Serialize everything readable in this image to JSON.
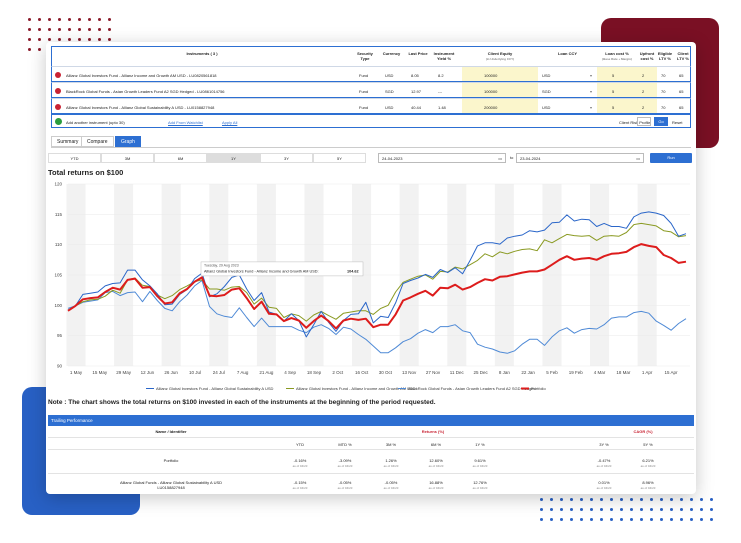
{
  "table": {
    "headers": [
      "Instruments ( 3 )",
      "Security Type",
      "Currency",
      "Last Price",
      "Instrument Yield %",
      "Client Equity",
      "Loan CCY",
      "Loan cost %",
      "Upfront cost %",
      "Eligible LTV %",
      "Client LTV %"
    ],
    "header_subs": [
      "",
      "",
      "",
      "",
      "",
      "(in Underlying CCY)",
      "",
      "(Base Rate + Margin)",
      "",
      "",
      ""
    ],
    "rows": [
      {
        "name": "Allianz Global Investors Fund - Allianz Income and Growth AM USD - LU0820561818",
        "type": "Fund",
        "currency": "USD",
        "price": "8.05",
        "yield": "8.2",
        "equity": "100000",
        "loan_ccy": "USD",
        "loan_cost": "5",
        "upfront": "2",
        "eligible": "70",
        "client": "65"
      },
      {
        "name": "BlackRock Global Funds - Asian Growth Leaders Fund A2 SGD Hedged - LU0861014756",
        "type": "Fund",
        "currency": "SGD",
        "price": "12.97",
        "yield": "---",
        "equity": "100000",
        "loan_ccy": "SGD",
        "loan_cost": "5",
        "upfront": "2",
        "eligible": "70",
        "client": "65"
      },
      {
        "name": "Allianz Global Investors Fund - Allianz Global Sustainability A USD - LU0158827948",
        "type": "Fund",
        "currency": "USD",
        "price": "40.44",
        "yield": "1.48",
        "equity": "200000",
        "loan_ccy": "USD",
        "loan_cost": "5",
        "upfront": "2",
        "eligible": "70",
        "client": "65"
      }
    ],
    "add_label": "Add another instrument (upto 30)",
    "add_watchlist": "Add From Watchlist",
    "apply_all": "Apply All",
    "risk_label": "Client Risk Profile",
    "go": "Go",
    "reset": "Reset"
  },
  "tabs": [
    "Summary",
    "Compare",
    "Graph"
  ],
  "periods": [
    "YTD",
    "3M",
    "6M",
    "1Y",
    "3Y",
    "5Y"
  ],
  "selected_period": "1Y",
  "date_from": "24-04-2023",
  "date_sep": "to",
  "date_to": "23-04-2024",
  "run": "Run",
  "chart_title": "Total returns on $100",
  "chart_data": {
    "type": "line",
    "ylim": [
      90,
      120
    ],
    "yticks": [
      90,
      95,
      100,
      105,
      110,
      115,
      120
    ],
    "x_labels": [
      "1 May",
      "15 May",
      "29 May",
      "12 Jun",
      "26 Jun",
      "10 Jul",
      "24 Jul",
      "7 Aug",
      "21 Aug",
      "4 Sep",
      "18 Sep",
      "2 Oct",
      "16 Oct",
      "30 Oct",
      "13 Nov",
      "27 Nov",
      "11 Dec",
      "25 Dec",
      "8 Jan",
      "22 Jan",
      "5 Feb",
      "19 Feb",
      "4 Mar",
      "18 Mar",
      "1 Apr",
      "15 Apr"
    ],
    "series": [
      {
        "name": "Allianz Global Investors Fund - Allianz Global Sustainability A USD",
        "color": "#2a66c9",
        "width": 1,
        "values": [
          99.2,
          99.9,
          101.8,
          102.0,
          102.2,
          103.2,
          103.6,
          103.7,
          105.8,
          105.8,
          104.2,
          103.2,
          101.9,
          100.1,
          100.2,
          101.8,
          102.6,
          104.4,
          105.3,
          101.4,
          101.9,
          103.1,
          104.6,
          105.0,
          102.7,
          100.8,
          102.1,
          98.9,
          98.5,
          97.4,
          98.6,
          97.5,
          94.8,
          96.8,
          99.0,
          97.2,
          95.7,
          97.5,
          98.5,
          98.6,
          100.5,
          97.1,
          98.2,
          98.0,
          100.4,
          103.6,
          104.1,
          104.5,
          105.1,
          104.6,
          105.9,
          105.4,
          106.2,
          105.2,
          107.4,
          109.8,
          110.3,
          110.3,
          110.1,
          111.1,
          111.4,
          111.6,
          112.3,
          112.1,
          112.4,
          113.6,
          113.7,
          114.9,
          113.9,
          114.2,
          114.1,
          113.0,
          113.5,
          113.0,
          113.0,
          112.7,
          114.6,
          115.2,
          115.4,
          115.2,
          114.8,
          113.5,
          111.4,
          111.8
        ]
      },
      {
        "name": "Allianz Global Investors Fund - Allianz Income and Growth AM USD",
        "color": "#8a9a22",
        "width": 1,
        "values": [
          99.2,
          99.9,
          100.6,
          100.9,
          101.0,
          101.5,
          102.5,
          102.0,
          104.2,
          104.5,
          103.3,
          103.1,
          101.7,
          101.1,
          101.6,
          102.6,
          103.2,
          103.9,
          104.2,
          102.7,
          102.7,
          102.5,
          103.0,
          103.1,
          102.1,
          100.2,
          101.2,
          99.7,
          99.5,
          98.0,
          98.6,
          98.3,
          97.4,
          98.4,
          99.0,
          98.3,
          97.7,
          98.7,
          98.9,
          99.1,
          99.1,
          98.5,
          99.5,
          100.0,
          102.2,
          103.8,
          104.3,
          104.8,
          105.0,
          104.3,
          105.6,
          105.5,
          106.3,
          106.0,
          106.7,
          107.4,
          108.5,
          108.0,
          108.8,
          108.5,
          108.9,
          109.2,
          109.3,
          109.0,
          110.8,
          110.3,
          111.0,
          111.7,
          111.5,
          111.4,
          111.5,
          110.7,
          111.4,
          111.5,
          111.4,
          112.0,
          113.3,
          113.5,
          113.3,
          113.1,
          112.3,
          112.1,
          111.3,
          111.5
        ]
      },
      {
        "name": "BlackRock Global Funds - Asian Growth Leaders Fund A2 SGD Hedged",
        "color": "#4f8ad6",
        "width": 1,
        "values": [
          99.5,
          99.9,
          100.5,
          100.7,
          100.9,
          102.1,
          102.3,
          101.6,
          102.1,
          102.2,
          100.6,
          102.3,
          100.8,
          99.5,
          99.1,
          100.6,
          101.7,
          103.2,
          104.1,
          99.8,
          98.6,
          98.2,
          98.0,
          99.6,
          98.0,
          96.5,
          97.9,
          96.5,
          96.5,
          96.5,
          96.5,
          95.9,
          95.5,
          96.4,
          96.8,
          96.2,
          95.2,
          96.4,
          96.1,
          95.2,
          94.4,
          93.3,
          92.2,
          92.2,
          93.0,
          94.0,
          94.5,
          95.4,
          96.0,
          95.5,
          96.5,
          96.5,
          96.8,
          95.8,
          95.5,
          93.6,
          93.1,
          92.8,
          92.3,
          92.1,
          92.5,
          93.6,
          94.4,
          94.4,
          93.4,
          94.8,
          95.8,
          96.3,
          95.4,
          96.0,
          96.2,
          96.1,
          96.8,
          97.9,
          98.1,
          98.1,
          98.8,
          99.0,
          98.7,
          97.4,
          96.7,
          95.9,
          97.0,
          97.8
        ]
      },
      {
        "name": "Portfolio",
        "color": "#dd1c1c",
        "width": 2,
        "values": [
          99.1,
          99.9,
          101.0,
          101.2,
          101.3,
          102.2,
          102.9,
          102.6,
          104.2,
          104.4,
          102.9,
          103.0,
          101.5,
          100.3,
          100.5,
          102.0,
          102.7,
          103.9,
          104.6,
          101.6,
          101.5,
          101.7,
          102.6,
          102.8,
          101.2,
          99.4,
          100.6,
          98.6,
          98.5,
          97.4,
          97.9,
          97.5,
          96.3,
          97.4,
          98.3,
          97.4,
          96.2,
          97.5,
          97.8,
          97.6,
          97.8,
          96.4,
          96.8,
          96.8,
          98.5,
          100.8,
          101.3,
          101.9,
          102.4,
          101.6,
          102.9,
          102.8,
          103.4,
          102.6,
          103.0,
          103.7,
          104.3,
          104.1,
          104.7,
          104.8,
          105.1,
          105.4,
          105.6,
          105.6,
          105.9,
          106.7,
          107.5,
          108.1,
          107.5,
          107.7,
          107.8,
          107.5,
          108.1,
          108.5,
          108.6,
          108.8,
          109.6,
          110.1,
          109.8,
          109.6,
          108.3,
          107.8,
          107.0,
          107.2
        ]
      }
    ],
    "tooltip": {
      "date": "Tuesday, 29 Aug 2023",
      "text": "Allianz Global Investors Fund - Allianz Income and Growth AM USD:",
      "value": "104.62"
    }
  },
  "note": "Note : The chart shows the total returns on $100 invested in each of the instruments at the beginning of the period requested.",
  "trailing": {
    "title": "Trailing Performance",
    "name_header": "Name / Identifier",
    "returns_header": "Returns (%)",
    "cagr_header": "CAGR (%)",
    "cols": [
      "YTD",
      "MTD %",
      "3M %",
      "6M %",
      "1Y %",
      "3Y %",
      "5Y %"
    ],
    "rows": [
      {
        "name": "Portfolio",
        "id": "",
        "vals": [
          "-0.16%",
          "-3.09%",
          "1.26%",
          "12.60%",
          "9.61%",
          "-0.47%",
          "6.21%"
        ],
        "asof": [
          "as of 04/23",
          "as of 04/23",
          "as of 04/23",
          "as of 04/23",
          "as of 04/23",
          "as of 04/23",
          "as of 04/23"
        ]
      },
      {
        "name": "Allianz Global Funds - Allianz Global Sustainability A USD",
        "id": "LU0158827948",
        "vals": [
          "-0.15%",
          "-0.05%",
          "-0.05%",
          "16.88%",
          "12.76%",
          "0.01%",
          "8.96%"
        ],
        "asof": [
          "as of 04/23",
          "as of 04/23",
          "as of 04/23",
          "as of 04/23",
          "as of 04/23",
          "as of 04/23",
          "as of 04/23"
        ]
      }
    ]
  }
}
